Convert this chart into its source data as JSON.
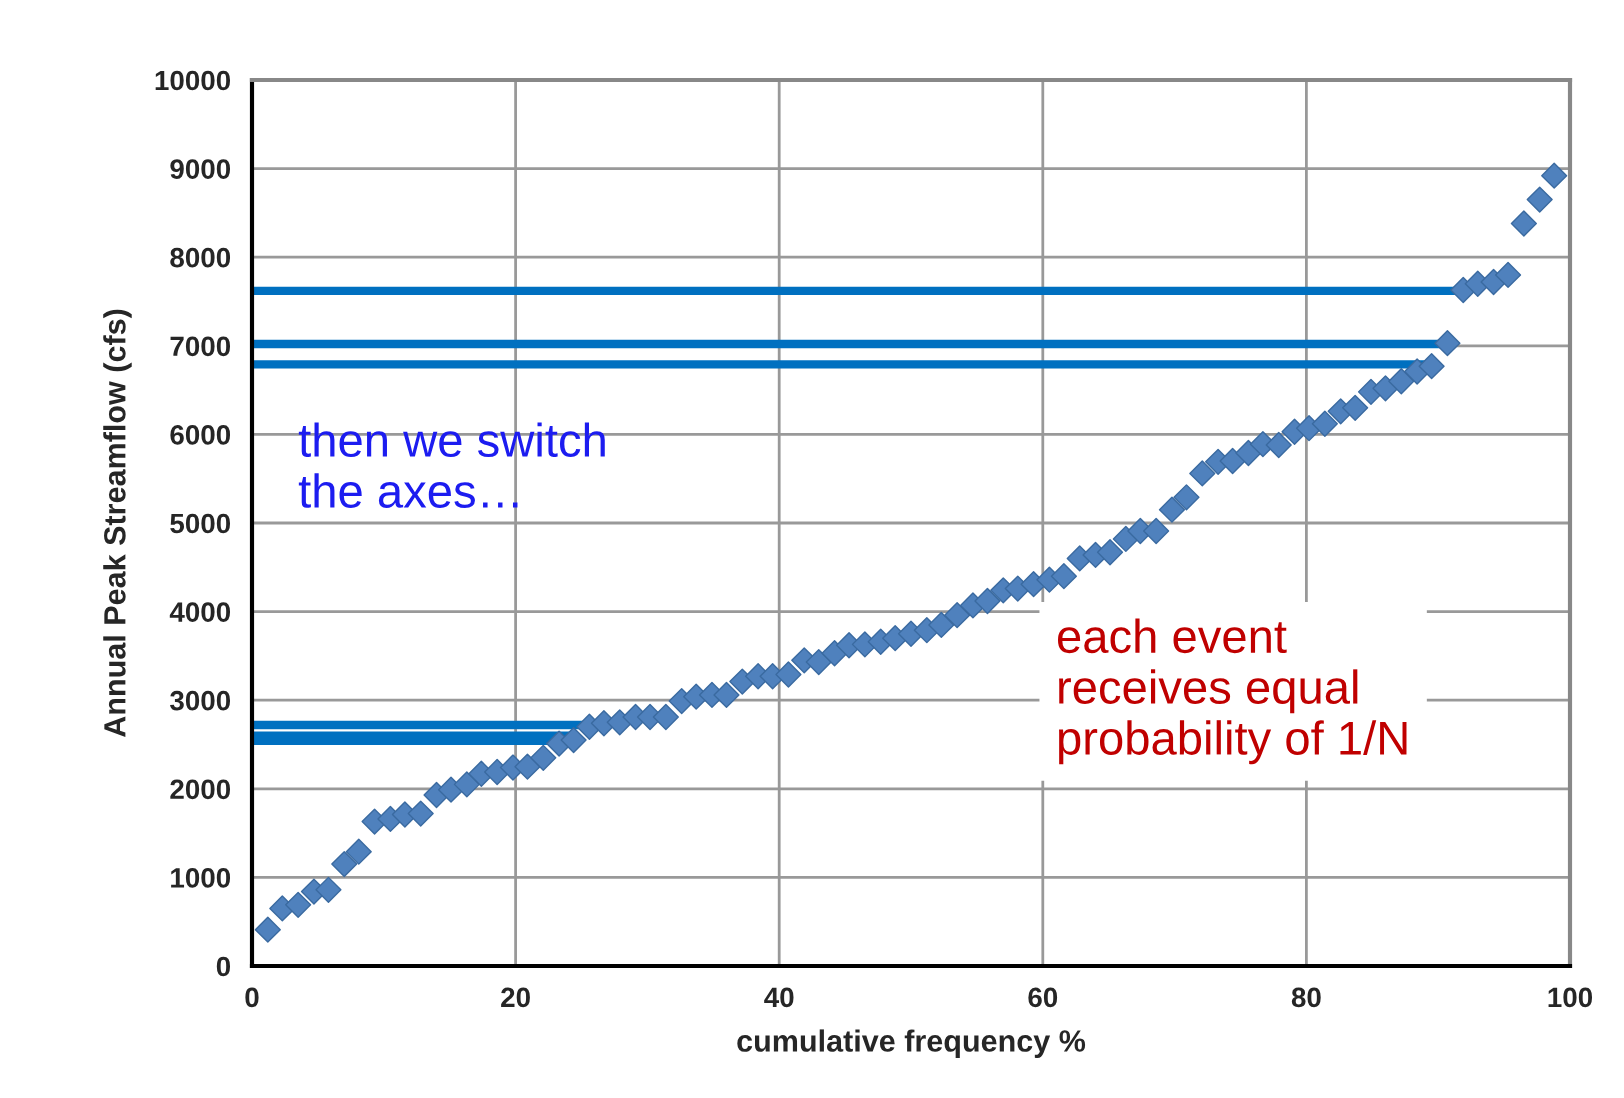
{
  "chart_data": {
    "type": "scatter",
    "xlabel": "cumulative frequency %",
    "ylabel": "Annual Peak Streamflow (cfs)",
    "annotations": [
      "then we switch\nthe axes…",
      "each event\nreceives equal\nprobability of 1/N"
    ],
    "xlim": [
      0,
      100
    ],
    "xticks": [
      0,
      20,
      40,
      60,
      80,
      100
    ],
    "ylim": [
      0,
      10000
    ],
    "yticks": [
      0,
      1000,
      2000,
      3000,
      4000,
      5000,
      6000,
      7000,
      8000,
      9000,
      10000
    ],
    "grid": true,
    "legend": false,
    "series": [
      {
        "type": "line",
        "color": "#0070c0",
        "x": [
          0,
          91.5
        ],
        "values": [
          7620,
          7620
        ]
      },
      {
        "type": "line",
        "color": "#0070c0",
        "x": [
          0,
          90.5
        ],
        "values": [
          7020,
          7020
        ]
      },
      {
        "type": "line",
        "color": "#0070c0",
        "x": [
          0,
          89.1
        ],
        "values": [
          6790,
          6790
        ]
      },
      {
        "type": "line",
        "color": "#0070c0",
        "x": [
          0,
          25.9
        ],
        "values": [
          2720,
          2720
        ]
      },
      {
        "type": "line",
        "color": "#0070c0",
        "x": [
          0,
          24.4
        ],
        "values": [
          2600,
          2600
        ]
      },
      {
        "type": "line",
        "color": "#0070c0",
        "x": [
          0,
          23.5
        ],
        "values": [
          2540,
          2540
        ]
      },
      {
        "color": "#4f81bd",
        "marker": "diamond",
        "x": [
          1.2,
          2.3,
          3.5,
          4.7,
          5.8,
          7.0,
          8.1,
          9.3,
          10.5,
          11.6,
          12.8,
          14.0,
          15.1,
          16.3,
          17.4,
          18.6,
          19.8,
          20.9,
          22.1,
          23.3,
          24.4,
          25.6,
          26.7,
          27.9,
          29.1,
          30.2,
          31.4,
          32.6,
          33.7,
          34.9,
          36.0,
          37.2,
          38.4,
          39.5,
          40.7,
          41.9,
          43.0,
          44.2,
          45.3,
          46.5,
          47.7,
          48.8,
          50.0,
          51.2,
          52.3,
          53.5,
          54.7,
          55.8,
          57.0,
          58.1,
          59.3,
          60.5,
          61.6,
          62.8,
          64.0,
          65.1,
          66.3,
          67.4,
          68.6,
          69.8,
          70.9,
          72.1,
          73.3,
          74.4,
          75.6,
          76.7,
          77.9,
          79.1,
          80.2,
          81.4,
          82.6,
          83.7,
          84.9,
          86.0,
          87.2,
          88.4,
          89.5,
          90.7,
          91.9,
          93.0,
          94.2,
          95.3,
          96.5,
          97.7,
          98.8
        ],
        "values": [
          410,
          650,
          690,
          840,
          860,
          1150,
          1290,
          1630,
          1660,
          1710,
          1720,
          1930,
          1990,
          2050,
          2170,
          2190,
          2240,
          2250,
          2350,
          2510,
          2550,
          2700,
          2740,
          2750,
          2810,
          2810,
          2810,
          2990,
          3040,
          3060,
          3060,
          3210,
          3270,
          3270,
          3290,
          3450,
          3430,
          3530,
          3620,
          3630,
          3660,
          3700,
          3750,
          3790,
          3850,
          3960,
          4070,
          4120,
          4240,
          4260,
          4310,
          4360,
          4400,
          4600,
          4640,
          4670,
          4820,
          4910,
          4910,
          5150,
          5290,
          5560,
          5690,
          5700,
          5790,
          5890,
          5880,
          6030,
          6070,
          6120,
          6260,
          6300,
          6480,
          6520,
          6600,
          6710,
          6770,
          7030,
          7630,
          7700,
          7720,
          7800,
          8380,
          8650,
          8920
        ]
      }
    ]
  }
}
